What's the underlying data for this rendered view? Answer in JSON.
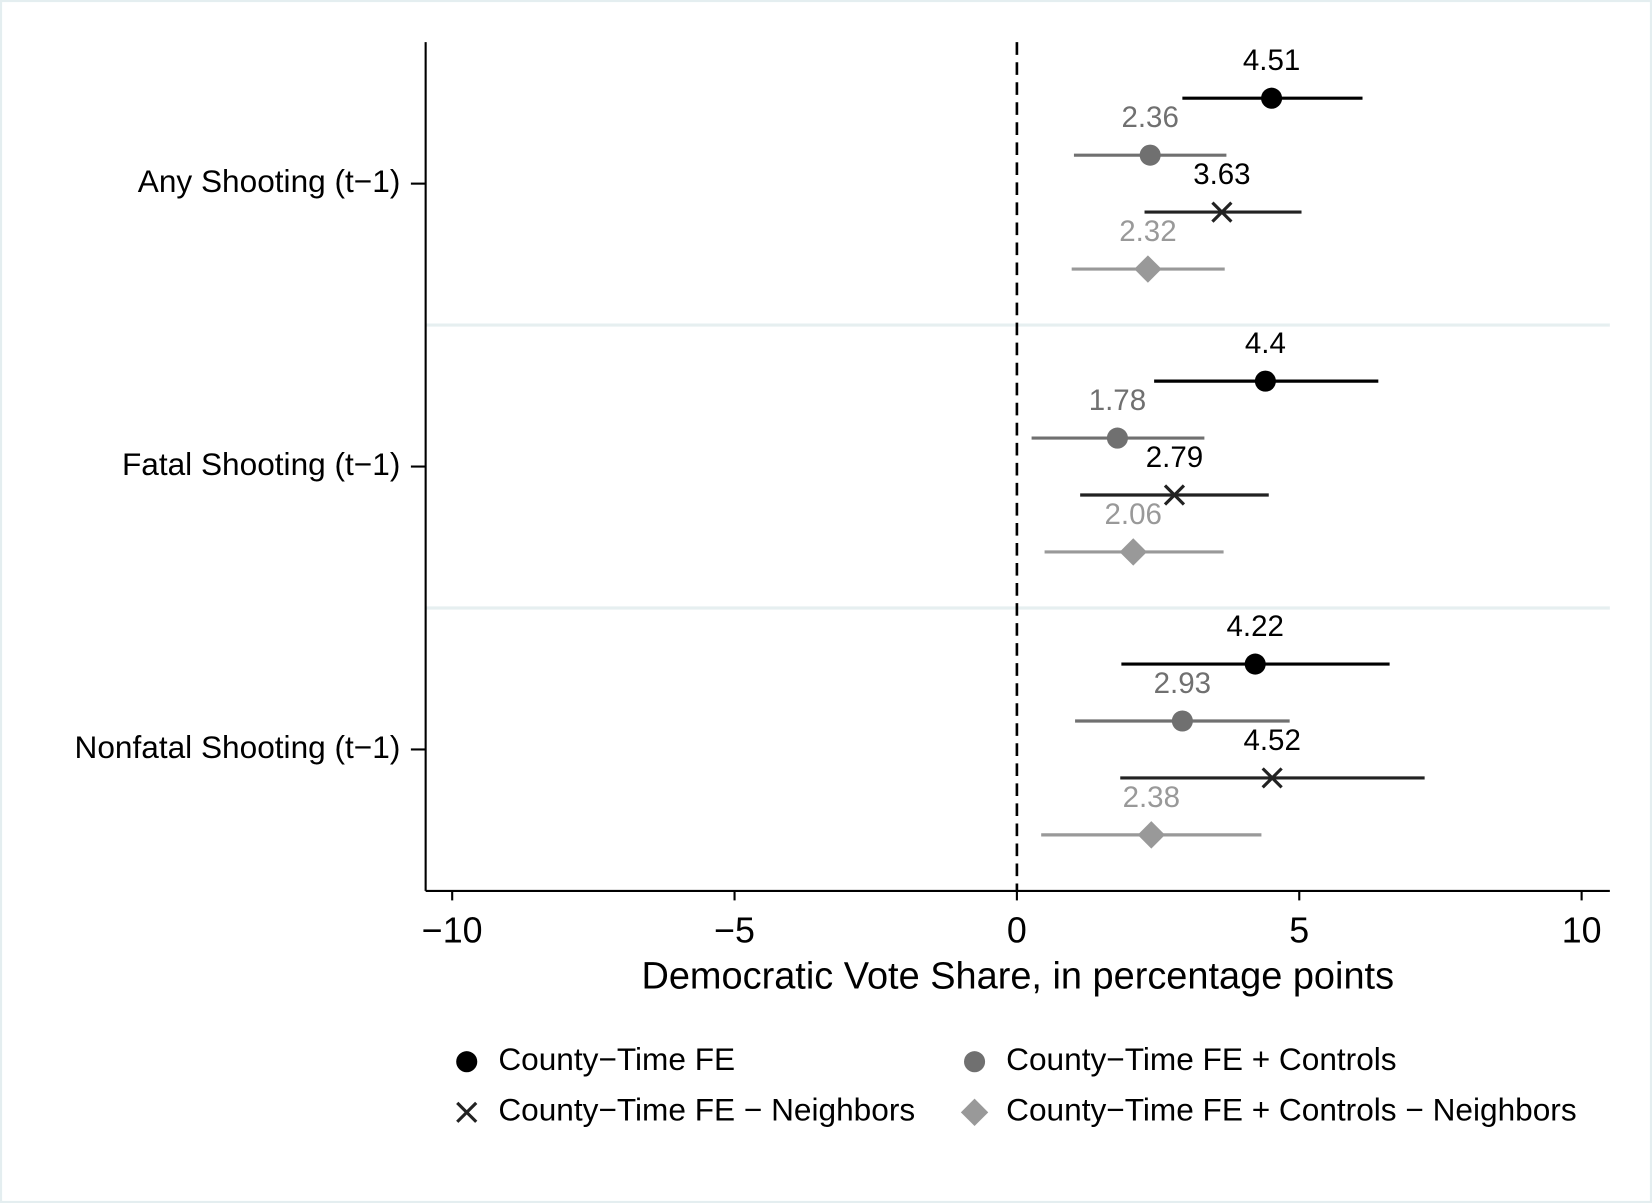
{
  "chart_data": {
    "type": "coefplot",
    "xlabel": "Democratic Vote Share, in percentage points",
    "categories": [
      "Any Shooting (t−1)",
      "Fatal Shooting (t−1)",
      "Nonfatal Shooting (t−1)"
    ],
    "series": [
      {
        "name": "County−Time FE",
        "color": "#000000",
        "marker": "circle",
        "values": [
          4.51,
          4.4,
          4.22
        ],
        "ci_low": [
          2.93,
          2.43,
          1.85
        ],
        "ci_high": [
          6.12,
          6.4,
          6.6
        ]
      },
      {
        "name": "County−Time FE + Controls",
        "color": "#707070",
        "marker": "circle",
        "values": [
          2.36,
          1.78,
          2.93
        ],
        "ci_low": [
          1.01,
          0.26,
          1.03
        ],
        "ci_high": [
          3.71,
          3.32,
          4.83
        ]
      },
      {
        "name": "County−Time FE − Neighbors",
        "color": "#222222",
        "marker": "x",
        "values": [
          3.63,
          2.79,
          4.52
        ],
        "ci_low": [
          2.26,
          1.12,
          1.83
        ],
        "ci_high": [
          5.04,
          4.46,
          7.22
        ]
      },
      {
        "name": "County−Time FE + Controls − Neighbors",
        "color": "#999999",
        "marker": "diamond",
        "values": [
          2.32,
          2.06,
          2.38
        ],
        "ci_low": [
          0.97,
          0.49,
          0.43
        ],
        "ci_high": [
          3.68,
          3.66,
          4.33
        ]
      }
    ],
    "xlim": [
      -10.47,
      10.5
    ],
    "xticks": [
      {
        "value": -10,
        "label": "−10"
      },
      {
        "value": -5,
        "label": "−5"
      },
      0,
      5,
      10
    ],
    "refline": 0,
    "legend": "bottom"
  }
}
